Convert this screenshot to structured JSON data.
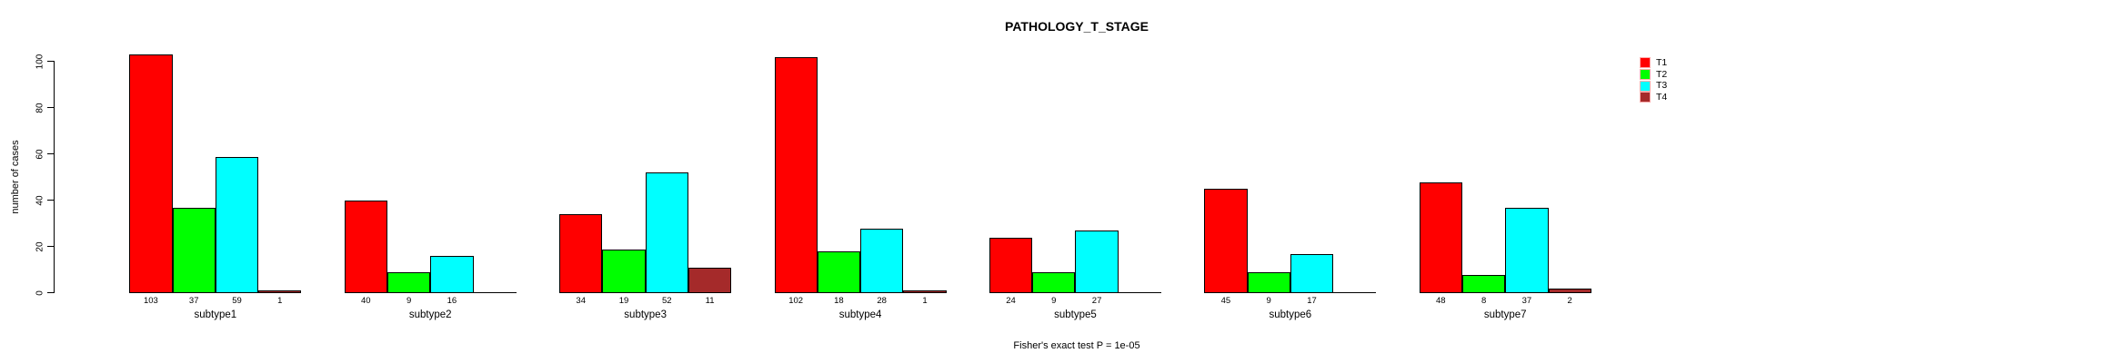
{
  "title": "PATHOLOGY_T_STAGE",
  "annotation": "Fisher's exact test P = 1e-05",
  "ylabel": "number of cases",
  "legend": {
    "entries": [
      {
        "label": "T1",
        "color": "#ff0000"
      },
      {
        "label": "T2",
        "color": "#00ff00"
      },
      {
        "label": "T3",
        "color": "#00ffff"
      },
      {
        "label": "T4",
        "color": "#a52a2a"
      }
    ]
  },
  "chart_data": {
    "type": "bar",
    "title": "PATHOLOGY_T_STAGE",
    "xlabel": "",
    "ylabel": "number of cases",
    "categories": [
      "subtype1",
      "subtype2",
      "subtype3",
      "subtype4",
      "subtype5",
      "subtype6",
      "subtype7"
    ],
    "series": [
      {
        "name": "T1",
        "color": "#ff0000",
        "values": [
          103,
          40,
          34,
          102,
          24,
          45,
          48
        ]
      },
      {
        "name": "T2",
        "color": "#00ff00",
        "values": [
          37,
          9,
          19,
          18,
          9,
          9,
          8
        ]
      },
      {
        "name": "T3",
        "color": "#00ffff",
        "values": [
          59,
          16,
          52,
          28,
          27,
          17,
          37
        ]
      },
      {
        "name": "T4",
        "color": "#a52a2a",
        "values": [
          1,
          0,
          11,
          1,
          0,
          0,
          2
        ]
      }
    ],
    "yticks": [
      0,
      20,
      40,
      60,
      80,
      100
    ],
    "ylim": [
      0,
      110
    ],
    "grid": false,
    "legend_position": "right",
    "bar_value_labels_shown": true,
    "zero_values_unlabeled": true,
    "annotation": "Fisher's exact test P = 1e-05"
  }
}
